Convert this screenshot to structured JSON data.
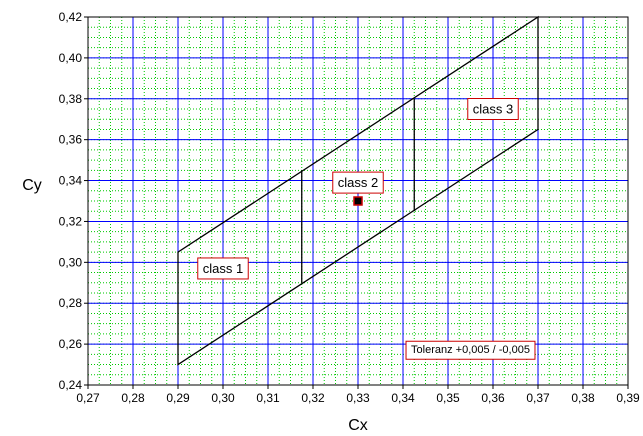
{
  "chart_data": {
    "type": "scatter",
    "title": "",
    "xlabel": "Cx",
    "ylabel": "Cy",
    "xlim": [
      0.27,
      0.39
    ],
    "ylim": [
      0.24,
      0.42
    ],
    "x_ticks": [
      "0,27",
      "0,28",
      "0,29",
      "0,30",
      "0,31",
      "0,32",
      "0,33",
      "0,34",
      "0,35",
      "0,36",
      "0,37",
      "0,38",
      "0,39"
    ],
    "y_ticks": [
      "0,24",
      "0,26",
      "0,28",
      "0,30",
      "0,32",
      "0,34",
      "0,36",
      "0,38",
      "0,40",
      "0,42"
    ],
    "major_grid": {
      "x_step": 0.01,
      "y_step": 0.02,
      "color": "#0000ff"
    },
    "minor_grid": {
      "x_step": 0.0025,
      "y_step": 0.005,
      "color": "#00c800",
      "style": "dotted"
    },
    "outline_points": [
      [
        0.29,
        0.25
      ],
      [
        0.37,
        0.365
      ],
      [
        0.37,
        0.42
      ],
      [
        0.29,
        0.305
      ]
    ],
    "divider_lines": [
      [
        [
          0.3175,
          0.29
        ],
        [
          0.3175,
          0.345
        ]
      ],
      [
        [
          0.3425,
          0.325
        ],
        [
          0.3425,
          0.38
        ]
      ]
    ],
    "reference_point": {
      "x": 0.33,
      "y": 0.33,
      "fill": "#000000",
      "border": "#cc0000"
    },
    "annotations": [
      {
        "text": "class 1",
        "x": 0.3,
        "y": 0.297,
        "border": "#cc0000"
      },
      {
        "text": "class 2",
        "x": 0.33,
        "y": 0.339,
        "border": "#cc0000"
      },
      {
        "text": "class 3",
        "x": 0.36,
        "y": 0.375,
        "border": "#cc0000"
      },
      {
        "text": "Toleranz +0,005 / -0,005",
        "x": 0.355,
        "y": 0.257,
        "border": "#cc0000"
      }
    ]
  }
}
